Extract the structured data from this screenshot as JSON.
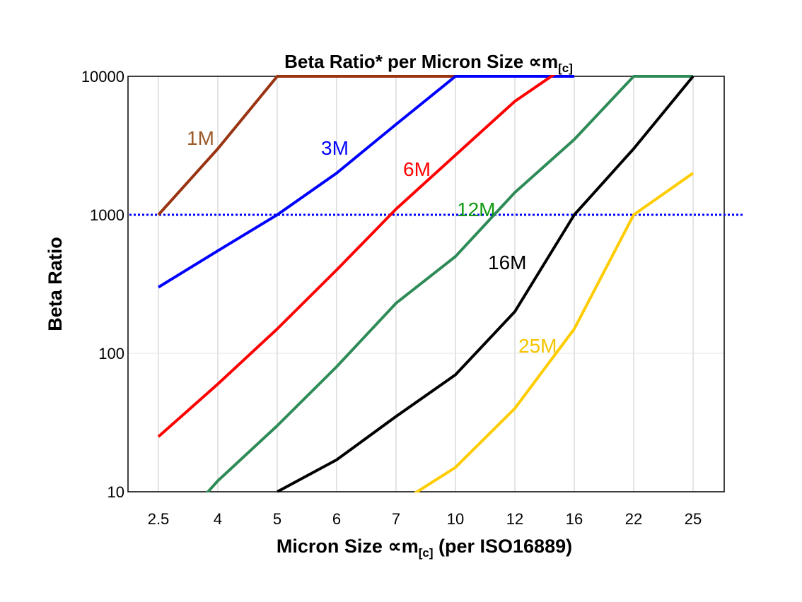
{
  "chart_data": {
    "type": "line",
    "title": "Beta Ratio* per Micron Size ∝m",
    "title_subscript": "[c]",
    "xlabel": "Micron Size ∝m",
    "xlabel_subscript": "[c]",
    "xlabel_suffix": " (per ISO16889)",
    "ylabel": "Beta Ratio",
    "y_scale": "log",
    "ylim": [
      10,
      10000
    ],
    "y_ticks": [
      "10",
      "100",
      "1000",
      "10000"
    ],
    "categories": [
      "2.5",
      "4",
      "5",
      "6",
      "7",
      "10",
      "12",
      "16",
      "22",
      "25"
    ],
    "grid": "vertical gridlines at categories, horizontal at 100",
    "reference_line": {
      "value": 1000,
      "style": "dotted",
      "color": "#0000ff"
    },
    "series": [
      {
        "name": "1M",
        "color": "#993311",
        "label_color": "#9c5a28",
        "values": [
          1000,
          3000,
          10000,
          10000,
          10000,
          10000,
          null,
          null,
          null,
          null
        ]
      },
      {
        "name": "3M",
        "color": "#0000ff",
        "label_color": "#0000ff",
        "values": [
          300,
          550,
          1000,
          2000,
          4500,
          10000,
          10000,
          10000,
          null,
          null
        ]
      },
      {
        "name": "6M",
        "color": "#ff0000",
        "label_color": "#ff0000",
        "values": [
          25,
          60,
          150,
          400,
          1100,
          2700,
          6600,
          13000,
          null,
          null
        ]
      },
      {
        "name": "12M",
        "color": "#2e8b57",
        "label_color": "#129a12",
        "values": [
          4,
          12,
          30,
          80,
          230,
          500,
          1450,
          3500,
          10000,
          10000
        ]
      },
      {
        "name": "16M",
        "color": "#000000",
        "label_color": "#000000",
        "values": [
          null,
          null,
          10,
          17,
          35,
          70,
          200,
          1000,
          3000,
          10000
        ]
      },
      {
        "name": "25M",
        "color": "#ffcc00",
        "label_color": "#f5c400",
        "values": [
          null,
          null,
          null,
          null,
          8,
          15,
          40,
          150,
          1000,
          2000
        ]
      }
    ]
  }
}
